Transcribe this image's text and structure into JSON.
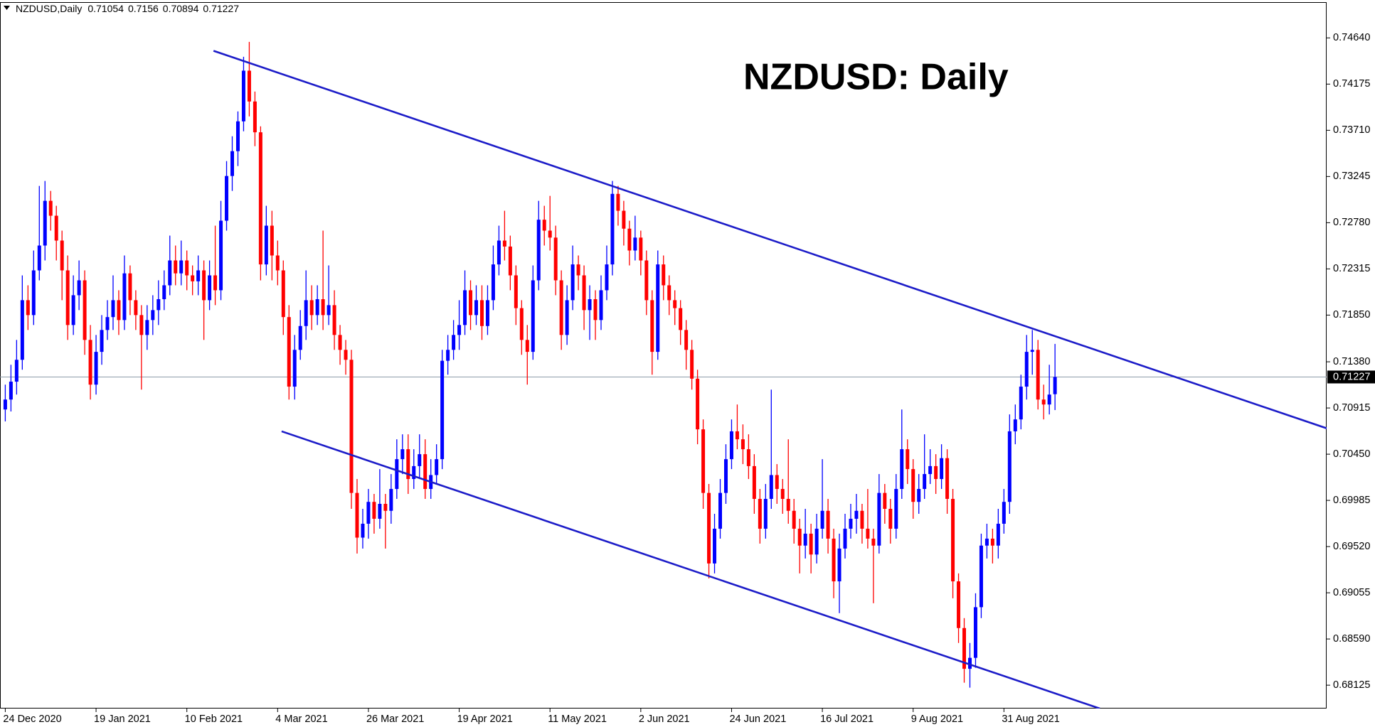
{
  "chart_data": {
    "type": "candlestick",
    "symbol": "NZDUSD,Daily",
    "title": "NZDUSD: Daily",
    "bull_color": "#0000ff",
    "bear_color": "#ff0000",
    "trendline_color": "#1c1cc8",
    "price_line_color": "#8a9aa8",
    "ylim": [
      0.6789,
      0.75
    ],
    "yticks": [
      {
        "value": 0.7464,
        "label": "0.74640"
      },
      {
        "value": 0.74175,
        "label": "0.74175"
      },
      {
        "value": 0.7371,
        "label": "0.73710"
      },
      {
        "value": 0.73245,
        "label": "0.73245"
      },
      {
        "value": 0.7278,
        "label": "0.72780"
      },
      {
        "value": 0.72315,
        "label": "0.72315"
      },
      {
        "value": 0.7185,
        "label": "0.71850"
      },
      {
        "value": 0.7138,
        "label": "0.71380"
      },
      {
        "value": 0.70915,
        "label": "0.70915"
      },
      {
        "value": 0.7045,
        "label": "0.70450"
      },
      {
        "value": 0.69985,
        "label": "0.69985"
      },
      {
        "value": 0.6952,
        "label": "0.69520"
      },
      {
        "value": 0.69055,
        "label": "0.69055"
      },
      {
        "value": 0.6859,
        "label": "0.68590"
      },
      {
        "value": 0.68125,
        "label": "0.68125"
      }
    ],
    "categories": [
      "24 Dec 2020",
      null,
      null,
      null,
      null,
      null,
      null,
      null,
      null,
      null,
      null,
      null,
      null,
      null,
      null,
      null,
      "19 Jan 2021",
      null,
      null,
      null,
      null,
      null,
      null,
      null,
      null,
      null,
      null,
      null,
      null,
      null,
      null,
      null,
      "10 Feb 2021",
      null,
      null,
      null,
      null,
      null,
      null,
      null,
      null,
      null,
      null,
      null,
      null,
      null,
      null,
      null,
      "4 Mar 2021",
      null,
      null,
      null,
      null,
      null,
      null,
      null,
      null,
      null,
      null,
      null,
      null,
      null,
      null,
      null,
      "26 Mar 2021",
      null,
      null,
      null,
      null,
      null,
      null,
      null,
      null,
      null,
      null,
      null,
      null,
      null,
      null,
      null,
      "19 Apr 2021",
      null,
      null,
      null,
      null,
      null,
      null,
      null,
      null,
      null,
      null,
      null,
      null,
      null,
      null,
      null,
      "11 May 2021",
      null,
      null,
      null,
      null,
      null,
      null,
      null,
      null,
      null,
      null,
      null,
      null,
      null,
      null,
      null,
      "2 Jun 2021",
      null,
      null,
      null,
      null,
      null,
      null,
      null,
      null,
      null,
      null,
      null,
      null,
      null,
      null,
      null,
      "24 Jun 2021",
      null,
      null,
      null,
      null,
      null,
      null,
      null,
      null,
      null,
      null,
      null,
      null,
      null,
      null,
      null,
      "16 Jul 2021",
      null,
      null,
      null,
      null,
      null,
      null,
      null,
      null,
      null,
      null,
      null,
      null,
      null,
      null,
      null,
      "9 Aug 2021",
      null,
      null,
      null,
      null,
      null,
      null,
      null,
      null,
      null,
      null,
      null,
      null,
      null,
      null,
      null,
      "31 Aug 2021",
      null,
      null,
      null,
      null,
      null,
      null,
      null,
      null,
      null
    ],
    "candles": [
      [
        0.709,
        0.7115,
        0.7078,
        0.71
      ],
      [
        0.71,
        0.7135,
        0.7088,
        0.7118
      ],
      [
        0.7118,
        0.716,
        0.7105,
        0.714
      ],
      [
        0.714,
        0.7225,
        0.713,
        0.72
      ],
      [
        0.72,
        0.7215,
        0.717,
        0.7185
      ],
      [
        0.7185,
        0.725,
        0.7175,
        0.723
      ],
      [
        0.723,
        0.7315,
        0.722,
        0.7255
      ],
      [
        0.7255,
        0.732,
        0.724,
        0.73
      ],
      [
        0.73,
        0.731,
        0.727,
        0.7285
      ],
      [
        0.7285,
        0.7295,
        0.724,
        0.726
      ],
      [
        0.726,
        0.727,
        0.72,
        0.723
      ],
      [
        0.723,
        0.7245,
        0.716,
        0.7175
      ],
      [
        0.7175,
        0.7225,
        0.7165,
        0.7205
      ],
      [
        0.7205,
        0.724,
        0.719,
        0.722
      ],
      [
        0.722,
        0.723,
        0.7145,
        0.716
      ],
      [
        0.716,
        0.7175,
        0.71,
        0.7115
      ],
      [
        0.7115,
        0.7165,
        0.7105,
        0.7148
      ],
      [
        0.7148,
        0.7185,
        0.7135,
        0.717
      ],
      [
        0.717,
        0.72,
        0.716,
        0.7183
      ],
      [
        0.7183,
        0.7225,
        0.717,
        0.72
      ],
      [
        0.72,
        0.721,
        0.7165,
        0.718
      ],
      [
        0.718,
        0.7245,
        0.717,
        0.7227
      ],
      [
        0.7227,
        0.7235,
        0.7185,
        0.72
      ],
      [
        0.72,
        0.721,
        0.717,
        0.7185
      ],
      [
        0.7185,
        0.7195,
        0.711,
        0.7165
      ],
      [
        0.7165,
        0.7195,
        0.715,
        0.718
      ],
      [
        0.718,
        0.7205,
        0.7165,
        0.719
      ],
      [
        0.719,
        0.722,
        0.7175,
        0.7201
      ],
      [
        0.7201,
        0.723,
        0.719,
        0.7215
      ],
      [
        0.7215,
        0.7265,
        0.7205,
        0.724
      ],
      [
        0.724,
        0.7255,
        0.7215,
        0.7227
      ],
      [
        0.7227,
        0.726,
        0.7215,
        0.724
      ],
      [
        0.724,
        0.725,
        0.721,
        0.7225
      ],
      [
        0.7225,
        0.7235,
        0.7205,
        0.7219
      ],
      [
        0.7219,
        0.7245,
        0.7205,
        0.723
      ],
      [
        0.723,
        0.724,
        0.716,
        0.72
      ],
      [
        0.72,
        0.724,
        0.719,
        0.7225
      ],
      [
        0.7225,
        0.7275,
        0.7195,
        0.721
      ],
      [
        0.721,
        0.73,
        0.72,
        0.728
      ],
      [
        0.728,
        0.734,
        0.727,
        0.7325
      ],
      [
        0.7325,
        0.7365,
        0.731,
        0.735
      ],
      [
        0.735,
        0.739,
        0.7335,
        0.738
      ],
      [
        0.738,
        0.7445,
        0.737,
        0.7431
      ],
      [
        0.7431,
        0.746,
        0.7385,
        0.74
      ],
      [
        0.74,
        0.741,
        0.7355,
        0.7369
      ],
      [
        0.7369,
        0.7375,
        0.722,
        0.7236
      ],
      [
        0.7236,
        0.7295,
        0.7225,
        0.7275
      ],
      [
        0.7275,
        0.729,
        0.722,
        0.7245
      ],
      [
        0.7245,
        0.726,
        0.7215,
        0.723
      ],
      [
        0.723,
        0.724,
        0.7165,
        0.7183
      ],
      [
        0.7183,
        0.7195,
        0.71,
        0.7113
      ],
      [
        0.7113,
        0.7165,
        0.71,
        0.715
      ],
      [
        0.715,
        0.719,
        0.714,
        0.7174
      ],
      [
        0.7174,
        0.723,
        0.716,
        0.72
      ],
      [
        0.72,
        0.7215,
        0.717,
        0.7185
      ],
      [
        0.7185,
        0.7215,
        0.7175,
        0.7201
      ],
      [
        0.7201,
        0.727,
        0.717,
        0.7185
      ],
      [
        0.7185,
        0.7235,
        0.7175,
        0.7195
      ],
      [
        0.7195,
        0.721,
        0.715,
        0.7165
      ],
      [
        0.7165,
        0.7175,
        0.7135,
        0.715
      ],
      [
        0.715,
        0.716,
        0.7125,
        0.714
      ],
      [
        0.714,
        0.715,
        0.699,
        0.7006
      ],
      [
        0.7006,
        0.702,
        0.6945,
        0.6961
      ],
      [
        0.6961,
        0.699,
        0.695,
        0.6975
      ],
      [
        0.6975,
        0.701,
        0.696,
        0.6997
      ],
      [
        0.6997,
        0.7005,
        0.6965,
        0.698
      ],
      [
        0.698,
        0.703,
        0.697,
        0.6995
      ],
      [
        0.6995,
        0.7005,
        0.695,
        0.6988
      ],
      [
        0.6988,
        0.7025,
        0.6975,
        0.701
      ],
      [
        0.701,
        0.706,
        0.7,
        0.704
      ],
      [
        0.704,
        0.7065,
        0.7025,
        0.705
      ],
      [
        0.705,
        0.7065,
        0.7005,
        0.702
      ],
      [
        0.702,
        0.705,
        0.701,
        0.7033
      ],
      [
        0.7033,
        0.7065,
        0.702,
        0.7045
      ],
      [
        0.7045,
        0.706,
        0.7,
        0.701
      ],
      [
        0.701,
        0.704,
        0.7,
        0.7024
      ],
      [
        0.7024,
        0.7055,
        0.7015,
        0.704
      ],
      [
        0.704,
        0.715,
        0.703,
        0.7139
      ],
      [
        0.7139,
        0.7165,
        0.7125,
        0.715
      ],
      [
        0.715,
        0.718,
        0.714,
        0.7165
      ],
      [
        0.7165,
        0.72,
        0.715,
        0.7175
      ],
      [
        0.7175,
        0.723,
        0.7165,
        0.721
      ],
      [
        0.721,
        0.722,
        0.717,
        0.7185
      ],
      [
        0.7185,
        0.7215,
        0.7175,
        0.72
      ],
      [
        0.72,
        0.7215,
        0.716,
        0.7174
      ],
      [
        0.7174,
        0.7215,
        0.7165,
        0.72
      ],
      [
        0.72,
        0.7255,
        0.719,
        0.7236
      ],
      [
        0.7236,
        0.7275,
        0.7225,
        0.726
      ],
      [
        0.726,
        0.729,
        0.724,
        0.7254
      ],
      [
        0.7254,
        0.7265,
        0.721,
        0.7225
      ],
      [
        0.7225,
        0.7235,
        0.7175,
        0.7192
      ],
      [
        0.7192,
        0.72,
        0.7145,
        0.716
      ],
      [
        0.716,
        0.7175,
        0.7115,
        0.7148
      ],
      [
        0.7148,
        0.7235,
        0.714,
        0.722
      ],
      [
        0.722,
        0.73,
        0.721,
        0.7281
      ],
      [
        0.7281,
        0.7295,
        0.7255,
        0.727
      ],
      [
        0.727,
        0.7305,
        0.725,
        0.7263
      ],
      [
        0.7263,
        0.7275,
        0.7205,
        0.722
      ],
      [
        0.722,
        0.723,
        0.715,
        0.7165
      ],
      [
        0.7165,
        0.7215,
        0.7155,
        0.72
      ],
      [
        0.72,
        0.7255,
        0.719,
        0.7236
      ],
      [
        0.7236,
        0.7245,
        0.721,
        0.7225
      ],
      [
        0.7225,
        0.7235,
        0.717,
        0.719
      ],
      [
        0.719,
        0.7215,
        0.716,
        0.7201
      ],
      [
        0.7201,
        0.721,
        0.716,
        0.718
      ],
      [
        0.718,
        0.7225,
        0.717,
        0.721
      ],
      [
        0.721,
        0.7255,
        0.72,
        0.7236
      ],
      [
        0.7236,
        0.732,
        0.7225,
        0.7307
      ],
      [
        0.7307,
        0.7315,
        0.7275,
        0.729
      ],
      [
        0.729,
        0.73,
        0.7255,
        0.7272
      ],
      [
        0.7272,
        0.728,
        0.7235,
        0.725
      ],
      [
        0.725,
        0.7285,
        0.724,
        0.7263
      ],
      [
        0.7263,
        0.727,
        0.7225,
        0.724
      ],
      [
        0.724,
        0.725,
        0.7185,
        0.72
      ],
      [
        0.72,
        0.721,
        0.7125,
        0.7148
      ],
      [
        0.7148,
        0.725,
        0.714,
        0.7236
      ],
      [
        0.7236,
        0.7245,
        0.72,
        0.7215
      ],
      [
        0.7215,
        0.7225,
        0.7185,
        0.72
      ],
      [
        0.72,
        0.721,
        0.7175,
        0.7192
      ],
      [
        0.7192,
        0.72,
        0.7155,
        0.717
      ],
      [
        0.717,
        0.718,
        0.713,
        0.715
      ],
      [
        0.715,
        0.716,
        0.711,
        0.7121
      ],
      [
        0.7121,
        0.713,
        0.7055,
        0.707
      ],
      [
        0.707,
        0.708,
        0.699,
        0.7006
      ],
      [
        0.7006,
        0.7015,
        0.692,
        0.6935
      ],
      [
        0.6935,
        0.6985,
        0.6925,
        0.697
      ],
      [
        0.697,
        0.702,
        0.696,
        0.7006
      ],
      [
        0.7006,
        0.7055,
        0.6995,
        0.704
      ],
      [
        0.704,
        0.708,
        0.703,
        0.7068
      ],
      [
        0.7068,
        0.7095,
        0.705,
        0.706
      ],
      [
        0.706,
        0.7075,
        0.7035,
        0.705
      ],
      [
        0.705,
        0.7065,
        0.702,
        0.7033
      ],
      [
        0.7033,
        0.7045,
        0.6985,
        0.7
      ],
      [
        0.7,
        0.701,
        0.6955,
        0.697
      ],
      [
        0.697,
        0.7015,
        0.696,
        0.7
      ],
      [
        0.7,
        0.711,
        0.699,
        0.7024
      ],
      [
        0.7024,
        0.7035,
        0.6995,
        0.701
      ],
      [
        0.701,
        0.702,
        0.6985,
        0.7
      ],
      [
        0.7,
        0.706,
        0.6975,
        0.6988
      ],
      [
        0.6988,
        0.7,
        0.6955,
        0.697
      ],
      [
        0.697,
        0.698,
        0.6925,
        0.6953
      ],
      [
        0.6953,
        0.699,
        0.694,
        0.6965
      ],
      [
        0.6965,
        0.6975,
        0.6925,
        0.6944
      ],
      [
        0.6944,
        0.6985,
        0.6935,
        0.697
      ],
      [
        0.697,
        0.704,
        0.696,
        0.6988
      ],
      [
        0.6988,
        0.7,
        0.6945,
        0.696
      ],
      [
        0.696,
        0.697,
        0.69,
        0.6917
      ],
      [
        0.6917,
        0.6965,
        0.6885,
        0.695
      ],
      [
        0.695,
        0.6985,
        0.694,
        0.697
      ],
      [
        0.697,
        0.6995,
        0.696,
        0.698
      ],
      [
        0.698,
        0.7005,
        0.6965,
        0.6988
      ],
      [
        0.6988,
        0.6995,
        0.6955,
        0.697
      ],
      [
        0.697,
        0.701,
        0.695,
        0.696
      ],
      [
        0.696,
        0.697,
        0.6895,
        0.6953
      ],
      [
        0.6953,
        0.7025,
        0.6945,
        0.7006
      ],
      [
        0.7006,
        0.7015,
        0.6975,
        0.699
      ],
      [
        0.699,
        0.7,
        0.6955,
        0.697
      ],
      [
        0.697,
        0.7025,
        0.696,
        0.701
      ],
      [
        0.701,
        0.709,
        0.7,
        0.705
      ],
      [
        0.705,
        0.706,
        0.7015,
        0.703
      ],
      [
        0.703,
        0.704,
        0.698,
        0.6997
      ],
      [
        0.6997,
        0.7025,
        0.6985,
        0.701
      ],
      [
        0.701,
        0.7065,
        0.7,
        0.7025
      ],
      [
        0.7025,
        0.705,
        0.7015,
        0.7033
      ],
      [
        0.7033,
        0.7045,
        0.7005,
        0.702
      ],
      [
        0.702,
        0.7055,
        0.701,
        0.7041
      ],
      [
        0.7041,
        0.705,
        0.6985,
        0.7
      ],
      [
        0.7,
        0.701,
        0.69,
        0.6917
      ],
      [
        0.6917,
        0.6925,
        0.6855,
        0.687
      ],
      [
        0.687,
        0.688,
        0.6815,
        0.6829
      ],
      [
        0.6829,
        0.6855,
        0.681,
        0.684
      ],
      [
        0.684,
        0.6905,
        0.683,
        0.6891
      ],
      [
        0.6891,
        0.6965,
        0.688,
        0.6953
      ],
      [
        0.6953,
        0.6975,
        0.694,
        0.696
      ],
      [
        0.696,
        0.697,
        0.6935,
        0.6953
      ],
      [
        0.6953,
        0.699,
        0.694,
        0.6975
      ],
      [
        0.6975,
        0.701,
        0.6965,
        0.6997
      ],
      [
        0.6997,
        0.7085,
        0.6985,
        0.7068
      ],
      [
        0.7068,
        0.7095,
        0.7055,
        0.708
      ],
      [
        0.708,
        0.7125,
        0.707,
        0.7113
      ],
      [
        0.7113,
        0.7165,
        0.71,
        0.7148
      ],
      [
        0.7148,
        0.717,
        0.7125,
        0.715
      ],
      [
        0.715,
        0.716,
        0.709,
        0.71
      ],
      [
        0.71,
        0.7115,
        0.708,
        0.7095
      ],
      [
        0.7095,
        0.7135,
        0.7085,
        0.7105
      ],
      [
        0.71054,
        0.7156,
        0.70894,
        0.71227
      ]
    ],
    "trendlines": [
      {
        "from": [
          36.7,
          0.7451
        ],
        "to": [
          232.9,
          0.7071
        ]
      },
      {
        "from": [
          48.7,
          0.7068
        ],
        "to": [
          192.9,
          0.6789
        ]
      }
    ]
  }
}
